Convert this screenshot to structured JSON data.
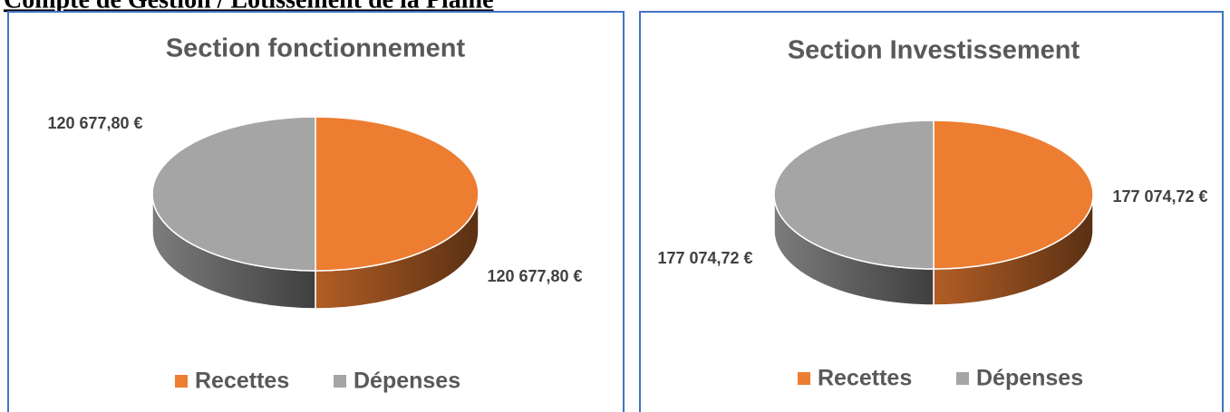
{
  "heading": "Compte de Gestion / Lotissement de la Plaine",
  "chart_data": [
    {
      "type": "pie3d",
      "title": "Section fonctionnement",
      "categories": [
        "Recettes",
        "Dépenses"
      ],
      "values": [
        120677.8,
        120677.8
      ],
      "value_labels": [
        "120 677,80 €",
        "120 677,80 €"
      ],
      "colors": [
        "#ed7d31",
        "#a5a5a5"
      ],
      "legend": "bottom"
    },
    {
      "type": "pie3d",
      "title": "Section Investissement",
      "categories": [
        "Recettes",
        "Dépenses"
      ],
      "values": [
        177074.72,
        177074.72
      ],
      "value_labels": [
        "177 074,72 €",
        "177 074,72 €"
      ],
      "colors": [
        "#ed7d31",
        "#a5a5a5"
      ],
      "legend": "bottom"
    }
  ]
}
